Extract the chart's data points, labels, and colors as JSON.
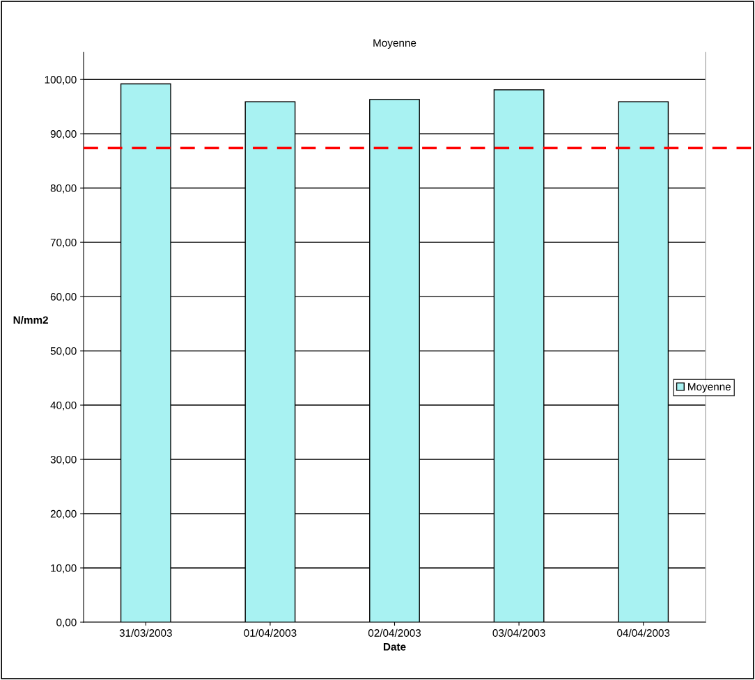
{
  "chart_data": {
    "type": "bar",
    "title": "Moyenne",
    "xlabel": "Date",
    "ylabel": "N/mm2",
    "categories": [
      "31/03/2003",
      "01/04/2003",
      "02/04/2003",
      "03/04/2003",
      "04/04/2003"
    ],
    "series": [
      {
        "name": "Moyenne",
        "color": "#a8f2f2",
        "values": [
          99.2,
          95.9,
          96.3,
          98.1,
          95.9
        ]
      }
    ],
    "ylim": [
      0,
      105
    ],
    "yticks": [
      {
        "value": 0,
        "label": "0,00"
      },
      {
        "value": 10,
        "label": "10,00"
      },
      {
        "value": 20,
        "label": "20,00"
      },
      {
        "value": 30,
        "label": "30,00"
      },
      {
        "value": 40,
        "label": "40,00"
      },
      {
        "value": 50,
        "label": "50,00"
      },
      {
        "value": 60,
        "label": "60,00"
      },
      {
        "value": 70,
        "label": "70,00"
      },
      {
        "value": 80,
        "label": "80,00"
      },
      {
        "value": 90,
        "label": "90,00"
      },
      {
        "value": 100,
        "label": "100,00"
      }
    ],
    "ref_lines": [
      {
        "axis": "y",
        "value": 87.4,
        "color": "#ff0000",
        "line_style": "dashed"
      }
    ],
    "grid": "y",
    "legend": "right"
  }
}
